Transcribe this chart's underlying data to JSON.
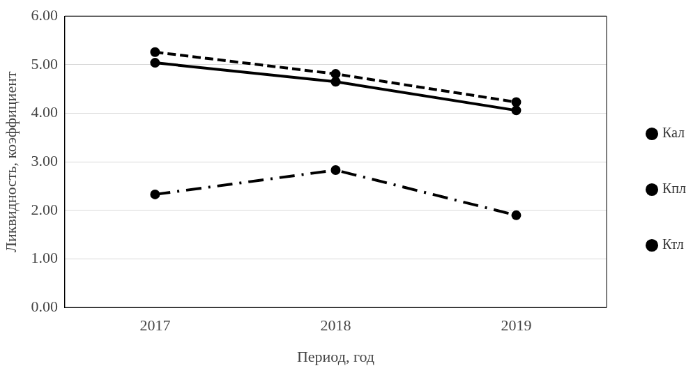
{
  "chart_data": {
    "type": "line",
    "xlabel": "Период, год",
    "ylabel": "Ликвидность, коэффициент",
    "categories": [
      "2017",
      "2018",
      "2019"
    ],
    "series": [
      {
        "name": "Кал",
        "color": "#000000",
        "values": [
          2.33,
          2.83,
          1.9
        ],
        "line_style": "dashdot"
      },
      {
        "name": "Кпл",
        "color": "#000000",
        "values": [
          5.04,
          4.65,
          4.06
        ],
        "line_style": "solid"
      },
      {
        "name": "Ктл",
        "color": "#000000",
        "values": [
          5.26,
          4.81,
          4.23
        ],
        "line_style": "dashed"
      }
    ],
    "ylim": [
      0,
      6
    ],
    "yticks": [
      {
        "value": 0,
        "label": "0.00"
      },
      {
        "value": 1,
        "label": "1.00"
      },
      {
        "value": 2,
        "label": "2.00"
      },
      {
        "value": 3,
        "label": "3.00"
      },
      {
        "value": 4,
        "label": "4.00"
      },
      {
        "value": 5,
        "label": "5.00"
      },
      {
        "value": 6,
        "label": "6.00"
      }
    ],
    "grid": "y",
    "legend": "right",
    "marker": "circle"
  }
}
